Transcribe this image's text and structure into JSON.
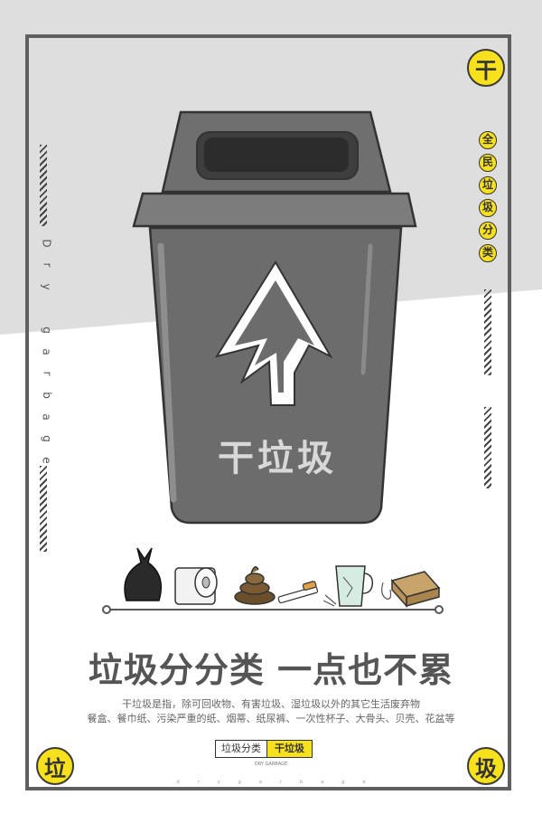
{
  "corners": {
    "top_right": "干",
    "bottom_left": "垃",
    "bottom_right": "圾"
  },
  "side_vertical": [
    "全",
    "民",
    "垃",
    "圾",
    "分",
    "类"
  ],
  "left_vertical_en": [
    "D",
    "r",
    "y",
    "g",
    "a",
    "r",
    "b",
    "a",
    "g",
    "e"
  ],
  "bin_label": "干垃圾",
  "headline": "垃圾分分类 一点也不累",
  "description_line1": "干垃圾是指，除可回收物、有害垃圾、湿垃圾以外的其它生活废弃物",
  "description_line2": "餐盒、餐巾纸、污染严重的纸、烟蒂、纸尿裤、一次性杯子、大骨头、贝壳、花盆等",
  "label_left": "垃圾分类",
  "label_right": "干垃圾",
  "label_sub": "DRY GARBAGE",
  "bottom_letters": [
    "d",
    "r",
    "y",
    "g",
    "a",
    "r",
    "b",
    "a",
    "g",
    "e"
  ],
  "colors": {
    "accent": "#f7e01c",
    "bin": "#6f6f6f",
    "text": "#555555"
  }
}
